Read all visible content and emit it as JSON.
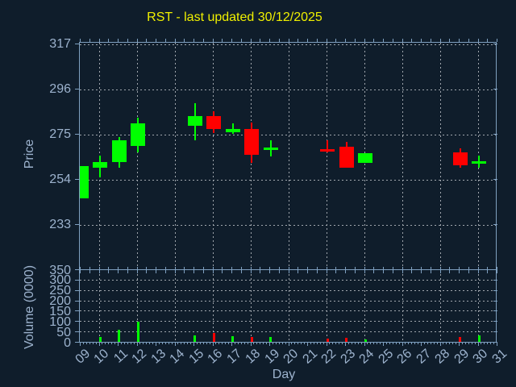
{
  "title": "RST - last updated 30/12/2025",
  "colors": {
    "background": "#0f1d2b",
    "axis": "#7fa0c0",
    "labels": "#9db3ce",
    "grid": "#a0a6ad",
    "title": "#f0f000",
    "up": "#00ff00",
    "down": "#ff0000"
  },
  "chart_data": {
    "type": "candlestick",
    "title": "RST - last updated 30/12/2025",
    "xlabel": "Day",
    "x_ticklabels": [
      "09",
      "10",
      "11",
      "12",
      "13",
      "14",
      "15",
      "16",
      "17",
      "18",
      "19",
      "20",
      "21",
      "22",
      "23",
      "24",
      "25",
      "26",
      "27",
      "28",
      "29",
      "30",
      "31"
    ],
    "x_first_day": 9,
    "x_last_day": 31,
    "x_gridline_days": [
      10,
      12,
      14,
      16,
      18,
      20,
      22,
      24,
      26,
      28,
      30
    ],
    "grid": "dashed",
    "panels": [
      {
        "name": "price",
        "ylabel": "Price",
        "yticks": [
          317,
          296,
          275,
          254,
          233
        ],
        "ylim": [
          212,
          318
        ]
      },
      {
        "name": "volume",
        "ylabel": "Volume (0000)",
        "yticks": [
          350,
          300,
          250,
          200,
          150,
          100,
          50,
          0
        ],
        "ylim": [
          0,
          350
        ]
      }
    ],
    "candles": [
      {
        "day": 9,
        "open": 245.5,
        "high": 260.5,
        "low": 245.5,
        "close": 260.5,
        "volume": 0
      },
      {
        "day": 10,
        "open": 260.0,
        "high": 265.5,
        "low": 255.5,
        "close": 262.5,
        "volume": 22
      },
      {
        "day": 11,
        "open": 262.5,
        "high": 274.0,
        "low": 260.0,
        "close": 272.5,
        "volume": 60
      },
      {
        "day": 12,
        "open": 270.0,
        "high": 283.0,
        "low": 267.0,
        "close": 280.5,
        "volume": 98
      },
      {
        "day": 15,
        "open": 279.5,
        "high": 290.0,
        "low": 272.5,
        "close": 284.0,
        "volume": 30
      },
      {
        "day": 16,
        "open": 284.0,
        "high": 286.0,
        "low": 276.0,
        "close": 278.0,
        "volume": 44
      },
      {
        "day": 17,
        "open": 276.5,
        "high": 280.5,
        "low": 275.5,
        "close": 278.0,
        "volume": 26
      },
      {
        "day": 18,
        "open": 278.0,
        "high": 281.0,
        "low": 262.0,
        "close": 266.0,
        "volume": 24
      },
      {
        "day": 19,
        "open": 268.8,
        "high": 272.5,
        "low": 265.0,
        "close": 269.2,
        "volume": 24
      },
      {
        "day": 22,
        "open": 268.6,
        "high": 272.5,
        "low": 267.0,
        "close": 268.2,
        "volume": 14
      },
      {
        "day": 23,
        "open": 269.5,
        "high": 272.0,
        "low": 260.0,
        "close": 260.0,
        "volume": 18
      },
      {
        "day": 24,
        "open": 262.0,
        "high": 266.5,
        "low": 262.0,
        "close": 266.5,
        "volume": 11
      },
      {
        "day": 29,
        "open": 267.0,
        "high": 269.0,
        "low": 260.0,
        "close": 261.0,
        "volume": 25
      },
      {
        "day": 30,
        "open": 262.2,
        "high": 265.5,
        "low": 260.0,
        "close": 262.8,
        "volume": 30
      }
    ]
  }
}
